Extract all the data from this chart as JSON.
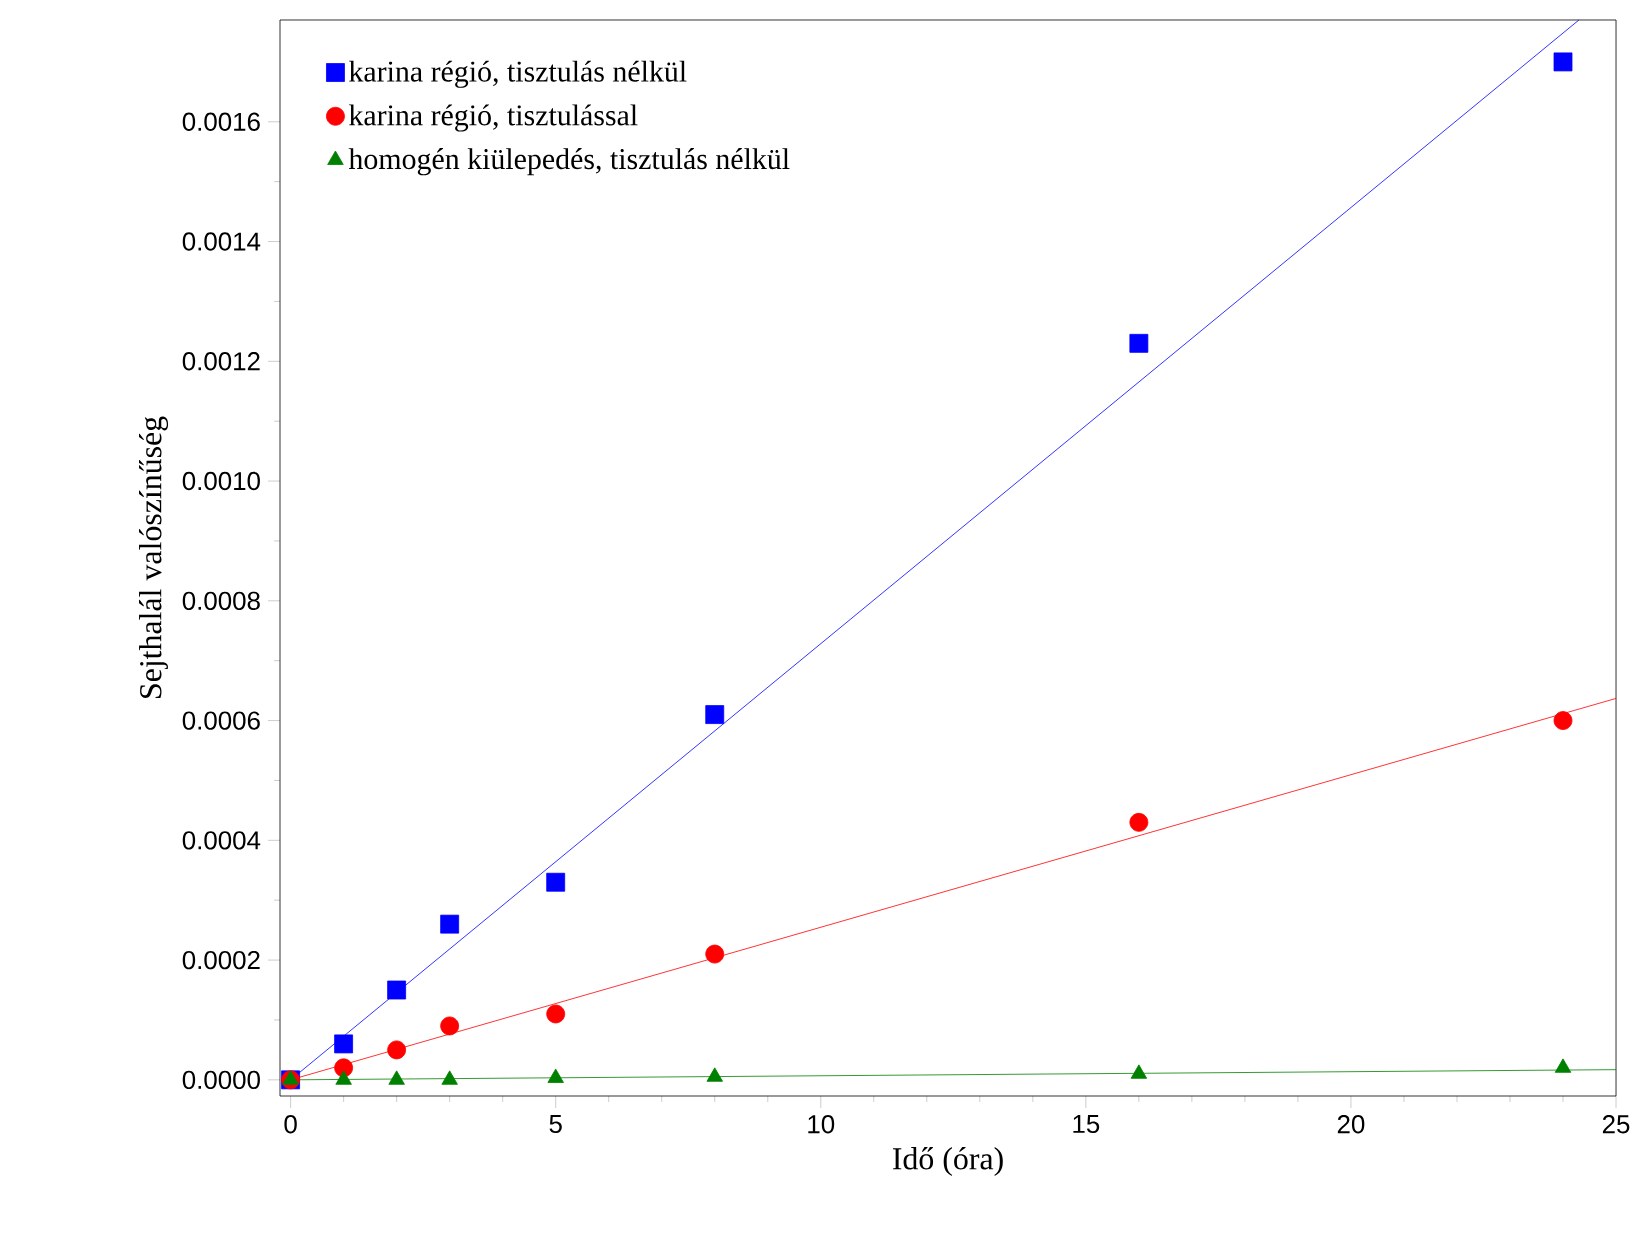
{
  "chart_data": {
    "type": "scatter",
    "xlabel": "Idő (óra)",
    "ylabel": "Sejthalál valószínűség",
    "xlim": [
      -0.2,
      25
    ],
    "ylim": [
      -2.7e-05,
      0.00177
    ],
    "xticks": [
      0,
      5,
      10,
      15,
      20,
      25
    ],
    "yticks": [
      {
        "value": 0,
        "label": "0.0000"
      },
      {
        "value": 0.0002,
        "label": "0.0002"
      },
      {
        "value": 0.0004,
        "label": "0.0004"
      },
      {
        "value": 0.0006,
        "label": "0.0006"
      },
      {
        "value": 0.0008,
        "label": "0.0008"
      },
      {
        "value": 0.001,
        "label": "0.0010"
      },
      {
        "value": 0.0012,
        "label": "0.0012"
      },
      {
        "value": 0.0014,
        "label": "0.0014"
      },
      {
        "value": 0.0016,
        "label": "0.0016"
      }
    ],
    "grid": false,
    "legend": "top left",
    "x": [
      0,
      1,
      2,
      3,
      5,
      8,
      16,
      24
    ],
    "series": [
      {
        "name": "karina régió, tisztulás nélkül",
        "color": "#0000ff",
        "marker": "square",
        "values": [
          0,
          6e-05,
          0.00015,
          0.00026,
          0.00033,
          0.00061,
          0.00123,
          0.0017
        ]
      },
      {
        "name": "karina régió, tisztulással",
        "color": "#ff0000",
        "marker": "circle",
        "values": [
          0,
          2e-05,
          5e-05,
          9e-05,
          0.00011,
          0.00021,
          0.00043,
          0.0006
        ]
      },
      {
        "name": "homogén kiülepedés, tisztulás nélkül",
        "color": "#008000",
        "marker": "triangle",
        "values": [
          0,
          0,
          0,
          0,
          3e-06,
          5e-06,
          1e-05,
          2e-05
        ]
      },
      {
        "type": "line",
        "color": "#0000ff",
        "marker": "none",
        "x": [
          0,
          24.3
        ],
        "values": [
          0,
          0.00177
        ]
      },
      {
        "type": "line",
        "color": "#ff0000",
        "marker": "none",
        "x": [
          0,
          25
        ],
        "values": [
          0,
          0.000637
        ]
      },
      {
        "type": "line",
        "color": "#008000",
        "marker": "none",
        "x": [
          0,
          25
        ],
        "values": [
          0,
          1.7e-05
        ]
      }
    ]
  }
}
